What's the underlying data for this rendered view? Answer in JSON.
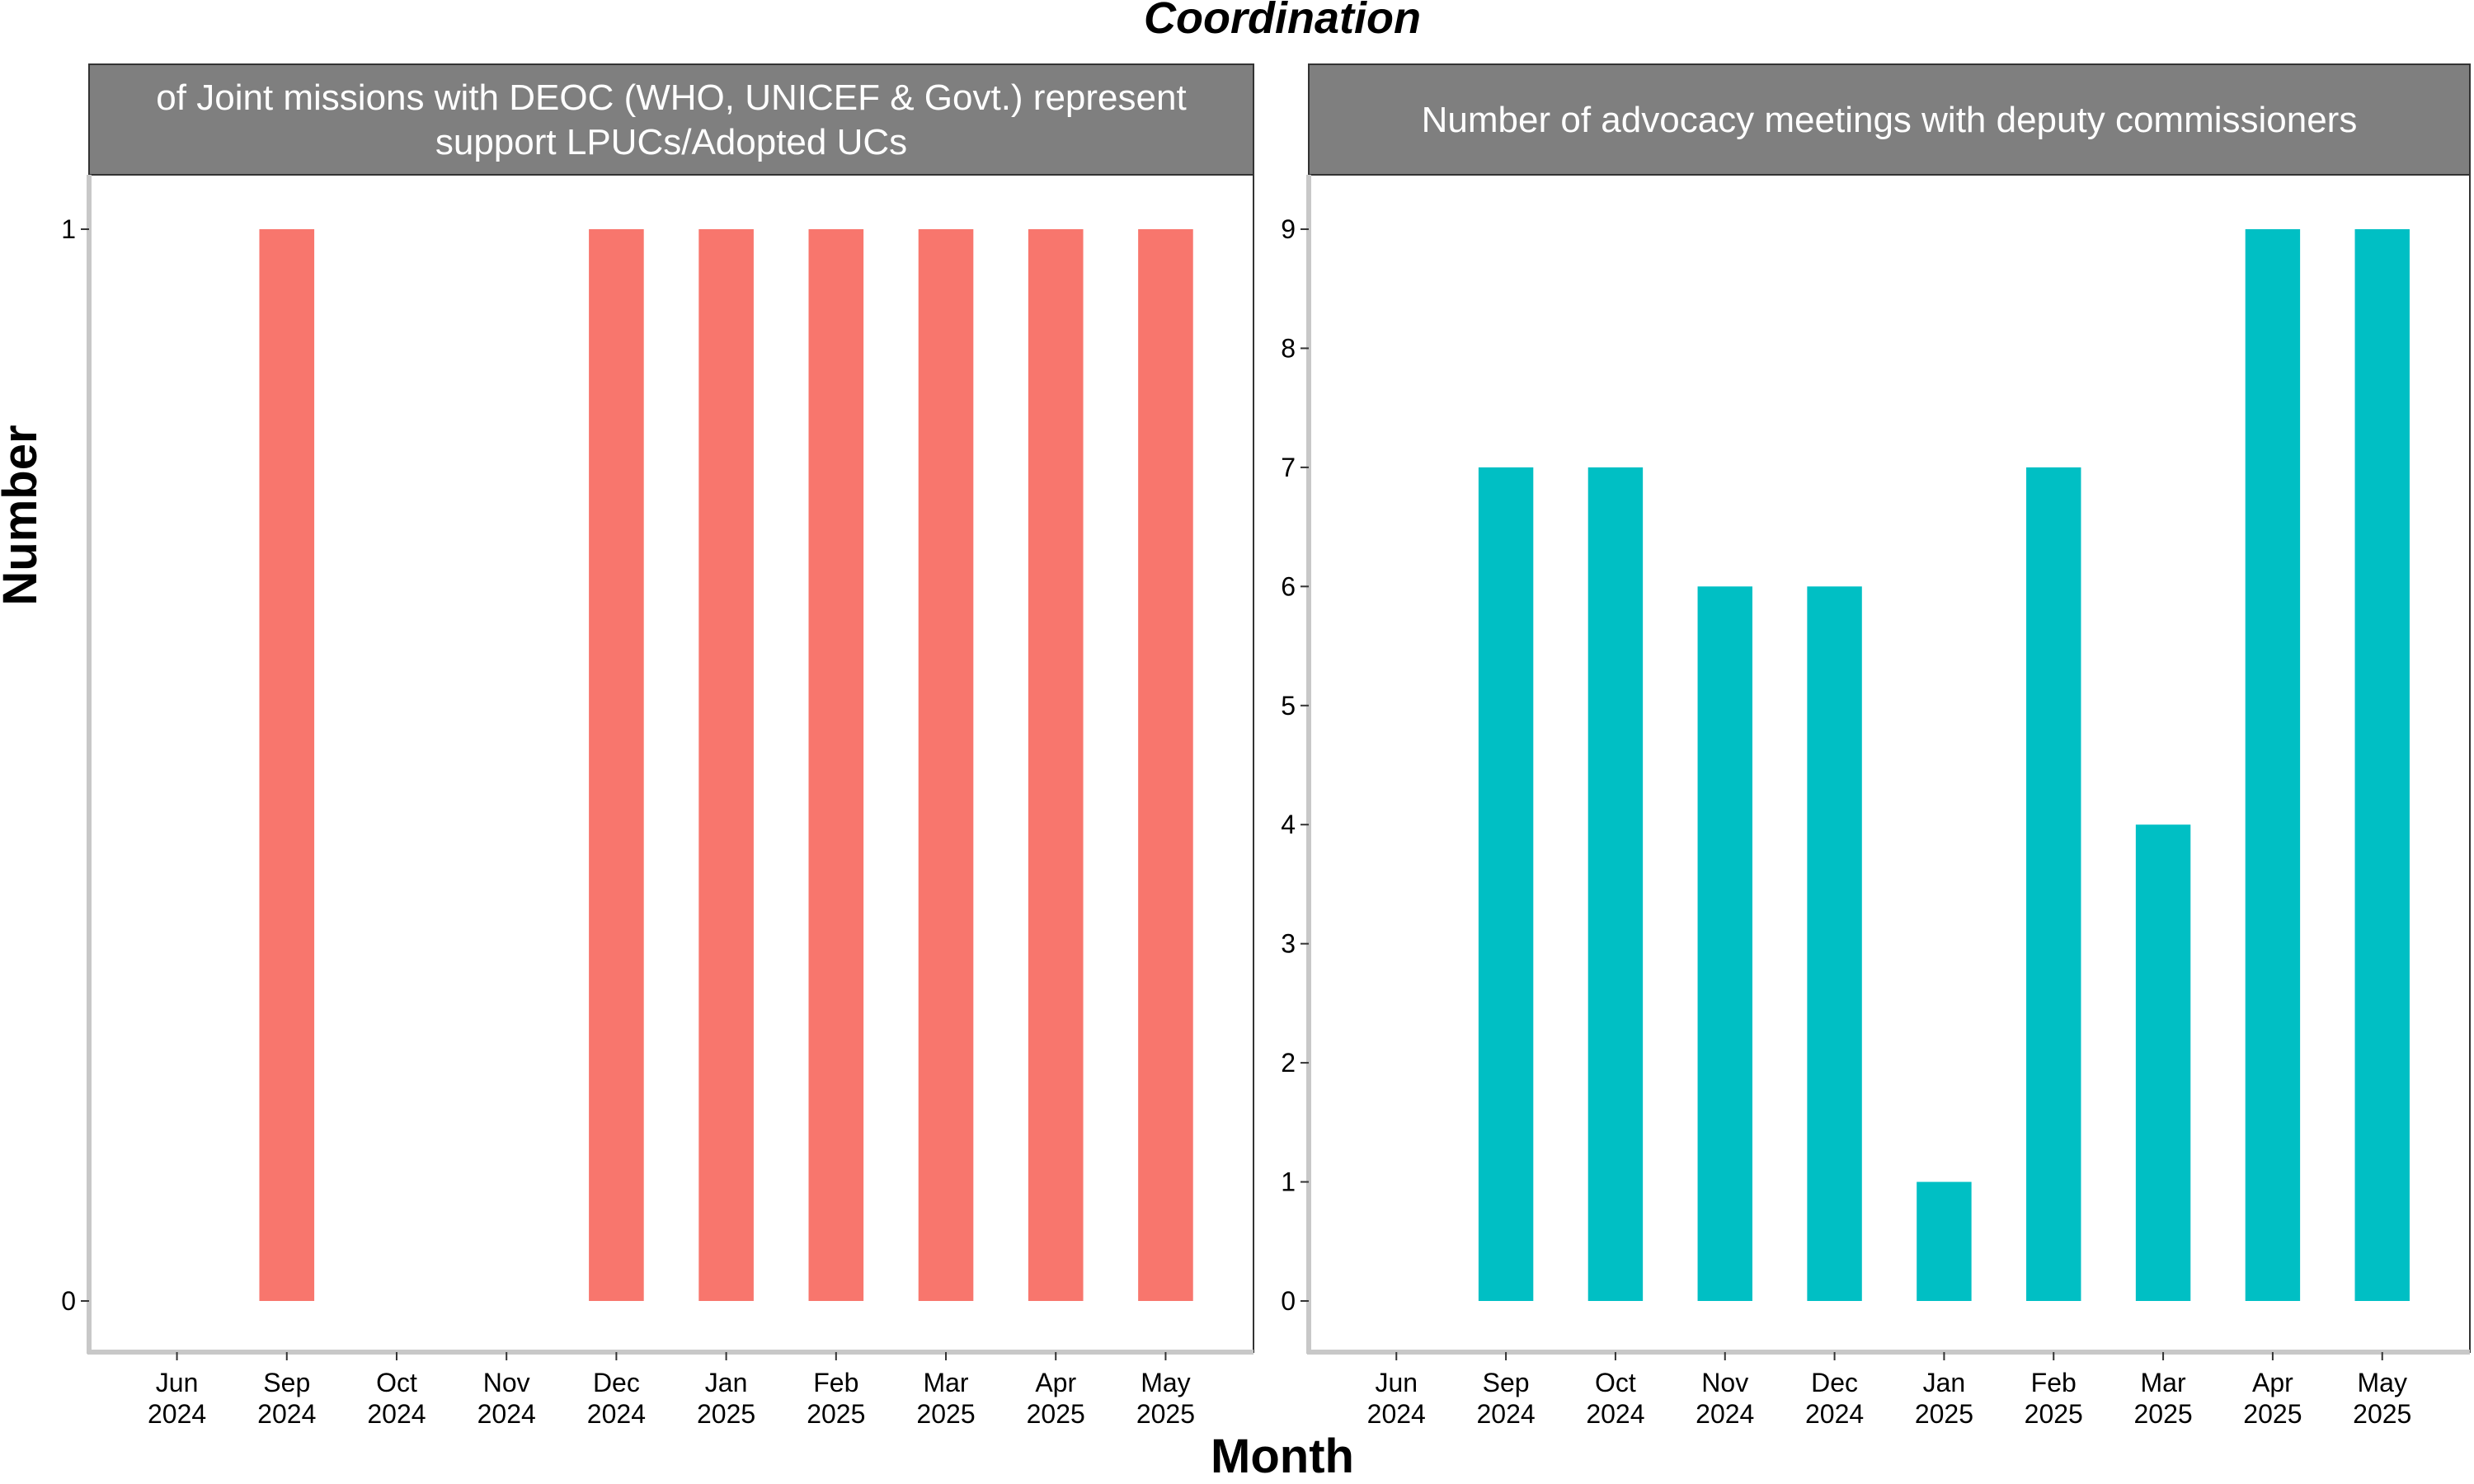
{
  "chart_data": {
    "type": "bar",
    "title": "Coordination",
    "xlabel": "Month",
    "ylabel": "Number",
    "categories": [
      "Jun\n2024",
      "Sep\n2024",
      "Oct\n2024",
      "Nov\n2024",
      "Dec\n2024",
      "Jan\n2025",
      "Feb\n2025",
      "Mar\n2025",
      "Apr\n2025",
      "May\n2025"
    ],
    "grid": false,
    "legend": "none",
    "panels": [
      {
        "strip_lines": [
          "of Joint missions with DEOC (WHO, UNICEF & Govt.) represent",
          "support LPUCs/Adopted UCs"
        ],
        "color": "#F8766D",
        "ylim": [
          0,
          1
        ],
        "yticks": [
          0,
          1
        ],
        "values": [
          null,
          1,
          null,
          null,
          1,
          1,
          1,
          1,
          1,
          1
        ]
      },
      {
        "strip_lines": [
          "Number of advocacy meetings with deputy commissioners"
        ],
        "color": "#00BFC4",
        "ylim": [
          0,
          9
        ],
        "yticks": [
          0,
          1,
          2,
          3,
          4,
          5,
          6,
          7,
          8,
          9
        ],
        "values": [
          null,
          7,
          7,
          6,
          6,
          1,
          7,
          4,
          9,
          9
        ]
      }
    ]
  }
}
